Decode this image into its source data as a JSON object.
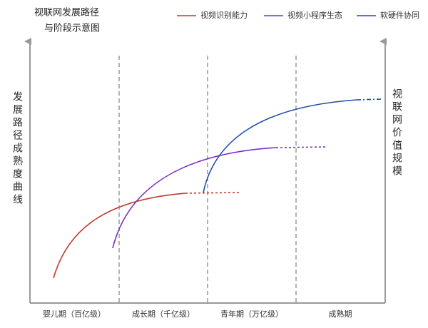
{
  "title": [
    "视联网发展路径",
    "与阶段示意图"
  ],
  "legend": [
    {
      "name": "视频识别能力",
      "color": "#c0392b"
    },
    {
      "name": "视频小程序生态",
      "color": "#7b2fbe"
    },
    {
      "name": "软硬件协同",
      "color": "#1f4fa8"
    }
  ],
  "y_label": "发展路径成熟度曲线",
  "y2_label": "视联网价值规模",
  "stages": [
    "婴儿期（百亿级）",
    "成长期（千亿级）",
    "青年期（万亿级）",
    "成熟期"
  ]
}
